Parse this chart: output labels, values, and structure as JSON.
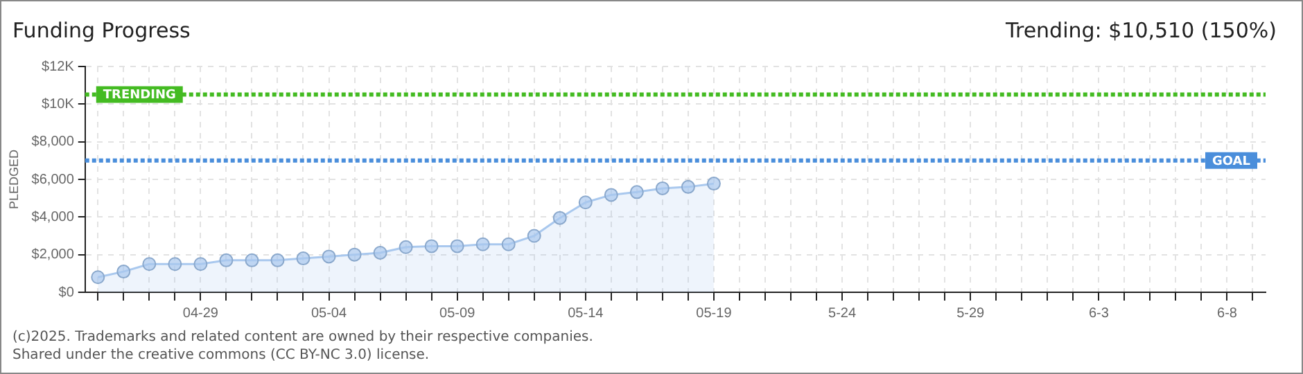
{
  "chart_data": {
    "type": "area",
    "title": "Funding Progress",
    "subtitle": "Trending: $10,510 (150%)",
    "ylabel": "PLEDGED",
    "categories": [
      null,
      null,
      null,
      null,
      "04-29",
      null,
      null,
      null,
      null,
      "05-04",
      null,
      null,
      null,
      null,
      "05-09",
      null,
      null,
      null,
      null,
      "05-14",
      null,
      null,
      null,
      null,
      "05-19",
      null,
      null,
      null,
      null,
      "5-24",
      null,
      null,
      null,
      null,
      "5-29",
      null,
      null,
      null,
      null,
      "6-3",
      null,
      null,
      null,
      null,
      "6-8",
      null
    ],
    "series": [
      {
        "color": "#a9c8ee",
        "values": [
          800,
          1100,
          1500,
          1500,
          1500,
          1700,
          1700,
          1700,
          1800,
          1900,
          2000,
          2100,
          2400,
          2450,
          2450,
          2550,
          2550,
          3000,
          3950,
          4775,
          5175,
          5325,
          5525,
          5600,
          5775,
          null,
          null,
          null,
          null,
          null,
          null,
          null,
          null,
          null,
          null,
          null,
          null,
          null,
          null,
          null,
          null,
          null,
          null,
          null,
          null,
          null
        ]
      }
    ],
    "ylim": [
      0,
      12000
    ],
    "yticks": [
      {
        "value": 0,
        "label": "$0"
      },
      {
        "value": 2000,
        "label": "$2,000"
      },
      {
        "value": 4000,
        "label": "$4,000"
      },
      {
        "value": 6000,
        "label": "$6,000"
      },
      {
        "value": 8000,
        "label": "$8,000"
      },
      {
        "value": 10000,
        "label": "$10K"
      },
      {
        "value": 12000,
        "label": "$12K"
      }
    ],
    "ref_lines": [
      {
        "axis": "y",
        "value": 10510,
        "label": "TRENDING",
        "color": "#44bb22",
        "line_style": "dotted"
      },
      {
        "axis": "y",
        "value": 7000,
        "label": "GOAL",
        "color": "#4a8edb",
        "line_style": "dotted"
      }
    ],
    "annotations": [
      "(c)2025. Trademarks and related content are owned by their respective companies.",
      "Shared under the creative commons (CC BY-NC 3.0) license."
    ],
    "grid": true,
    "legend": false,
    "marker": "circle",
    "line_style": "solid"
  }
}
